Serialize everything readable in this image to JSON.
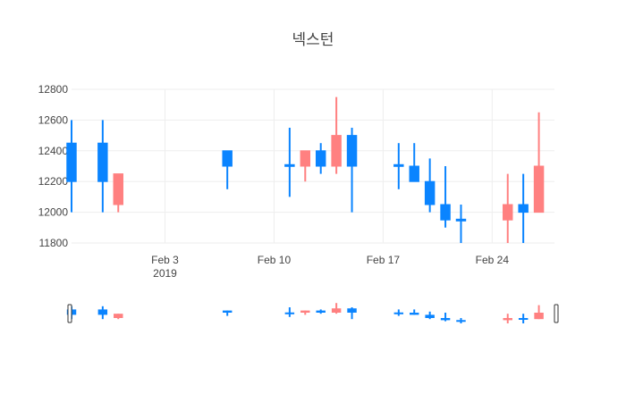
{
  "chart_data": {
    "type": "candlestick",
    "title": "넥스턴",
    "y_ticks": [
      11800,
      12000,
      12200,
      12400,
      12600,
      12800
    ],
    "y_range": [
      11800,
      12800
    ],
    "x_range": [
      "2019-01-28",
      "2019-02-28"
    ],
    "x_ticks": [
      {
        "date": "2019-02-03",
        "label": "Feb 3",
        "sublabel": "2019"
      },
      {
        "date": "2019-02-10",
        "label": "Feb 10",
        "sublabel": ""
      },
      {
        "date": "2019-02-17",
        "label": "Feb 17",
        "sublabel": ""
      },
      {
        "date": "2019-02-24",
        "label": "Feb 24",
        "sublabel": ""
      }
    ],
    "increasing_color": "#0a84ff",
    "decreasing_color": "#ff8080",
    "grid": true,
    "rangeslider": true,
    "candles": [
      {
        "date": "2019-01-28",
        "open": 12200,
        "high": 12600,
        "low": 12000,
        "close": 12450
      },
      {
        "date": "2019-01-30",
        "open": 12200,
        "high": 12600,
        "low": 12000,
        "close": 12450
      },
      {
        "date": "2019-01-31",
        "open": 12250,
        "high": 12250,
        "low": 12000,
        "close": 12050
      },
      {
        "date": "2019-02-07",
        "open": 12300,
        "high": 12400,
        "low": 12150,
        "close": 12400
      },
      {
        "date": "2019-02-11",
        "open": 12300,
        "high": 12550,
        "low": 12100,
        "close": 12310
      },
      {
        "date": "2019-02-12",
        "open": 12400,
        "high": 12400,
        "low": 12200,
        "close": 12300
      },
      {
        "date": "2019-02-13",
        "open": 12300,
        "high": 12450,
        "low": 12250,
        "close": 12400
      },
      {
        "date": "2019-02-14",
        "open": 12500,
        "high": 12750,
        "low": 12250,
        "close": 12300
      },
      {
        "date": "2019-02-15",
        "open": 12300,
        "high": 12550,
        "low": 12000,
        "close": 12500
      },
      {
        "date": "2019-02-18",
        "open": 12300,
        "high": 12450,
        "low": 12150,
        "close": 12310
      },
      {
        "date": "2019-02-19",
        "open": 12200,
        "high": 12450,
        "low": 12200,
        "close": 12300
      },
      {
        "date": "2019-02-20",
        "open": 12050,
        "high": 12350,
        "low": 12000,
        "close": 12200
      },
      {
        "date": "2019-02-21",
        "open": 11950,
        "high": 12300,
        "low": 11900,
        "close": 12050
      },
      {
        "date": "2019-02-22",
        "open": 11950,
        "high": 12050,
        "low": 11800,
        "close": 11955
      },
      {
        "date": "2019-02-25",
        "open": 12050,
        "high": 12250,
        "low": 11800,
        "close": 11950
      },
      {
        "date": "2019-02-26",
        "open": 12000,
        "high": 12250,
        "low": 11800,
        "close": 12050
      },
      {
        "date": "2019-02-27",
        "open": 12300,
        "high": 12650,
        "low": 12000,
        "close": 12000
      }
    ]
  }
}
